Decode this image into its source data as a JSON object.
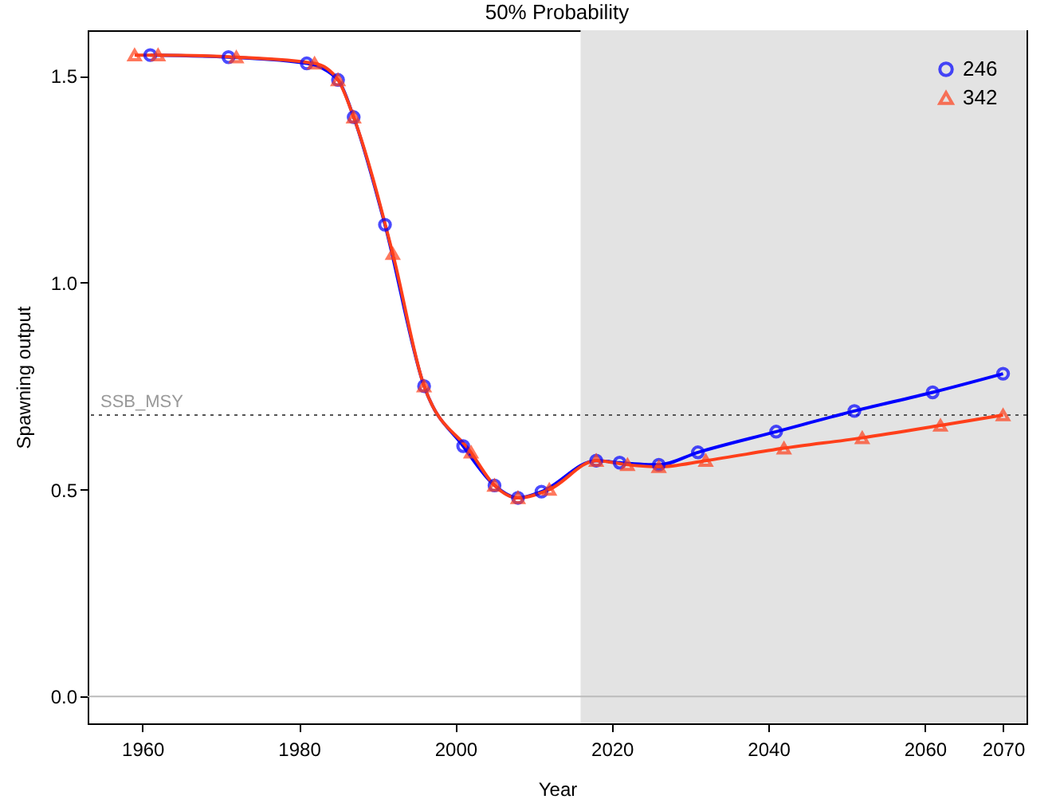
{
  "chart_data": {
    "type": "line",
    "title": "50% Probability",
    "xlabel": "Year",
    "ylabel": "Spawning output",
    "xlim": [
      1953,
      2073
    ],
    "xticks": [
      1960,
      1980,
      2000,
      2020,
      2040,
      2060,
      2070
    ],
    "ylim": [
      -0.065,
      1.61
    ],
    "yticks": [
      {
        "value": 0,
        "label": "0.0"
      },
      0.5,
      {
        "value": 1,
        "label": "1.0"
      },
      1.5
    ],
    "series": [
      {
        "name": "246",
        "color": "#0000ff",
        "marker": "circle",
        "x": [
          1961,
          1971,
          1981,
          1985,
          1987,
          1991,
          1996,
          2001,
          2005,
          2008,
          2011,
          2018,
          2021,
          2026,
          2031,
          2041,
          2051,
          2061,
          2070
        ],
        "values": [
          1.55,
          1.545,
          1.53,
          1.49,
          1.4,
          1.14,
          0.75,
          0.605,
          0.51,
          0.48,
          0.495,
          0.57,
          0.565,
          0.56,
          0.59,
          0.64,
          0.69,
          0.735,
          0.78
        ]
      },
      {
        "name": "342",
        "color": "#ff3f1a",
        "marker": "triangle",
        "x": [
          1959,
          1962,
          1972,
          1982,
          1985,
          1987,
          1992,
          1996,
          2002,
          2005,
          2008,
          2012,
          2018,
          2022,
          2026,
          2032,
          2042,
          2052,
          2062,
          2070
        ],
        "values": [
          1.55,
          1.55,
          1.545,
          1.53,
          1.49,
          1.4,
          1.07,
          0.75,
          0.59,
          0.51,
          0.48,
          0.5,
          0.57,
          0.56,
          0.555,
          0.57,
          0.6,
          0.625,
          0.655,
          0.68
        ]
      }
    ],
    "ref_lines": [
      {
        "axis": "y",
        "value": 0.68,
        "label": "SSB_MSY",
        "color": "#555555",
        "line_style": "dotted"
      },
      {
        "axis": "y",
        "value": 0.0,
        "color": "#bbbbbb",
        "line_style": "solid"
      }
    ],
    "bands": [
      {
        "axis": "x",
        "from": 2016,
        "to": 2073,
        "color": "#e3e3e3"
      }
    ],
    "legend": "top right",
    "grid": false
  }
}
